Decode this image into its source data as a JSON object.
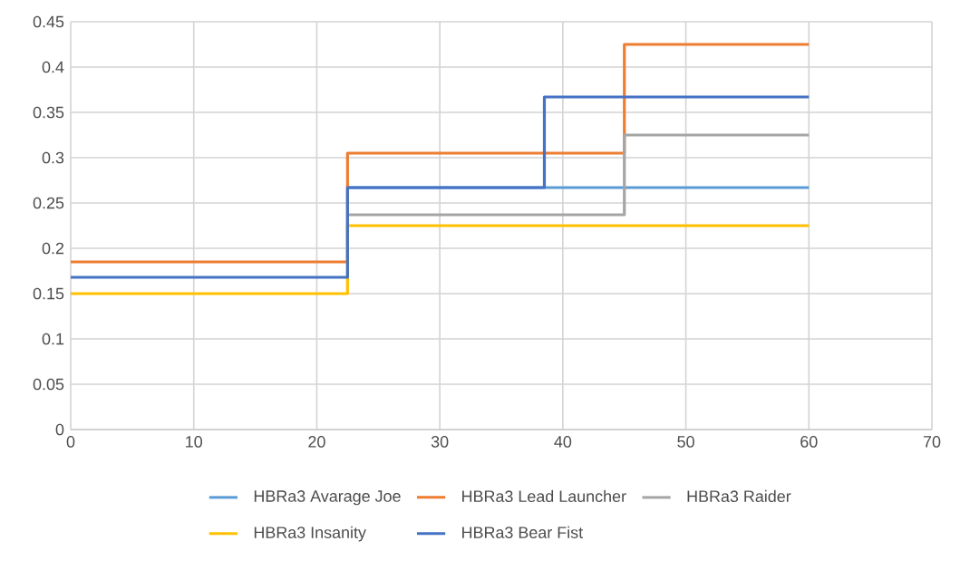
{
  "chart_data": {
    "type": "step",
    "xlim": [
      0,
      70
    ],
    "xticks": [
      0,
      10,
      20,
      30,
      40,
      50,
      60,
      70
    ],
    "ylim": [
      0,
      0.45
    ],
    "yticks": [
      0,
      0.05,
      0.1,
      0.15,
      0.2,
      0.25,
      0.3,
      0.35,
      0.4,
      0.45
    ],
    "grid": true,
    "legend": "bottom",
    "marker": "none",
    "line_style": "solid",
    "series": [
      {
        "name": "HBRa3 Avarage Joe",
        "color": "#5b9bd5",
        "x": [
          22.5,
          60
        ],
        "values": [
          0.267,
          0.267
        ]
      },
      {
        "name": "HBRa3 Lead Launcher",
        "color": "#ed7d31",
        "x": [
          0,
          22.5,
          45,
          60
        ],
        "values": [
          0.185,
          0.305,
          0.425,
          0.425
        ]
      },
      {
        "name": "HBRa3 Raider",
        "color": "#a5a5a5",
        "x": [
          22.5,
          45,
          60
        ],
        "values": [
          0.237,
          0.325,
          0.325
        ]
      },
      {
        "name": "HBRa3 Insanity",
        "color": "#ffc000",
        "x": [
          0,
          22.5,
          60
        ],
        "values": [
          0.15,
          0.225,
          0.225
        ]
      },
      {
        "name": "HBRa3 Bear Fist",
        "color": "#4472c4",
        "x": [
          0,
          22.5,
          38.5,
          60
        ],
        "values": [
          0.168,
          0.267,
          0.367,
          0.367
        ]
      }
    ]
  }
}
